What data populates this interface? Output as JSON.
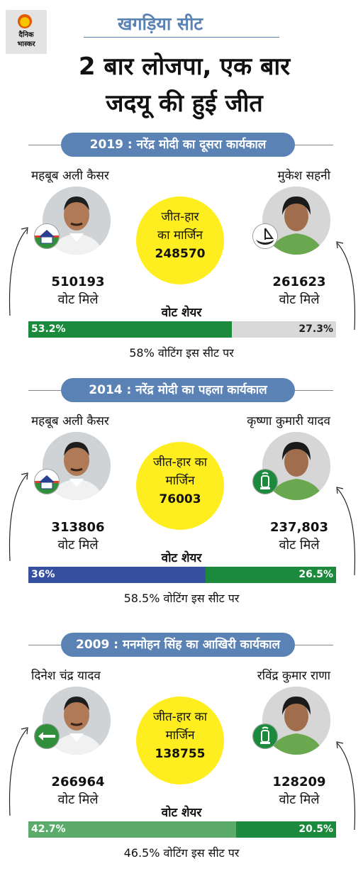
{
  "logo": {
    "line1": "दैनिक",
    "line2": "भास्कर"
  },
  "header": {
    "seat": "खगड़िया सीट",
    "headline_line1": "2 बार लोजपा, एक बार",
    "headline_line2": "जदयू की हुई जीत"
  },
  "vote_share_label": "वोट शेयर",
  "margin_label": "जीत-हार का मार्जिन",
  "votes_label": "वोट मिले",
  "sections": [
    {
      "title": "2019 : नरेंद्र मोदी का दूसरा कार्यकाल",
      "winner": {
        "name": "महबूब अली कैसर",
        "votes": "510193",
        "share": "53.2%",
        "share_value": 53.2,
        "party_icon": "bungalow-icon"
      },
      "runner": {
        "name": "मुकेश सहनी",
        "votes": "261623",
        "share": "27.3%",
        "share_value": 27.3,
        "party_icon": "boat-icon"
      },
      "margin_line1": "जीत-हार",
      "margin_line2": "का मार्जिन",
      "margin": "248570",
      "turnout": "58% वोटिंग इस सीट पर",
      "colors": {
        "left": "#1c8a3c",
        "right": "#d9d9d9",
        "right_text": "#222222"
      }
    },
    {
      "title": "2014 : नरेंद्र मोदी का पहला कार्यकाल",
      "winner": {
        "name": "महबूब अली कैसर",
        "votes": "313806",
        "share": "36%",
        "share_value": 36,
        "party_icon": "bungalow-icon"
      },
      "runner": {
        "name": "कृष्णा कुमारी यादव",
        "votes": "237,803",
        "share": "26.5%",
        "share_value": 26.5,
        "party_icon": "lantern-icon"
      },
      "margin_line1": "जीत-हार का",
      "margin_line2": "मार्जिन",
      "margin": "76003",
      "turnout": "58.5% वोटिंग इस सीट पर",
      "colors": {
        "left": "#3650a0",
        "right": "#1c8a3c",
        "right_text": "#ffffff"
      }
    },
    {
      "title": "2009 : मनमोहन सिंह का आखिरी कार्यकाल",
      "winner": {
        "name": "दिनेश चंद्र यादव",
        "votes": "266964",
        "share": "42.7%",
        "share_value": 42.7,
        "party_icon": "arrow-icon"
      },
      "runner": {
        "name": "रविंद्र कुमार राणा",
        "votes": "128209",
        "share": "20.5%",
        "share_value": 20.5,
        "party_icon": "lantern-icon"
      },
      "margin_line1": "जीत-हार का",
      "margin_line2": "मार्जिन",
      "margin": "138755",
      "turnout": "46.5% वोटिंग इस सीट पर",
      "colors": {
        "left": "#5cab6a",
        "right": "#1c8a3c",
        "right_text": "#ffffff"
      }
    }
  ]
}
